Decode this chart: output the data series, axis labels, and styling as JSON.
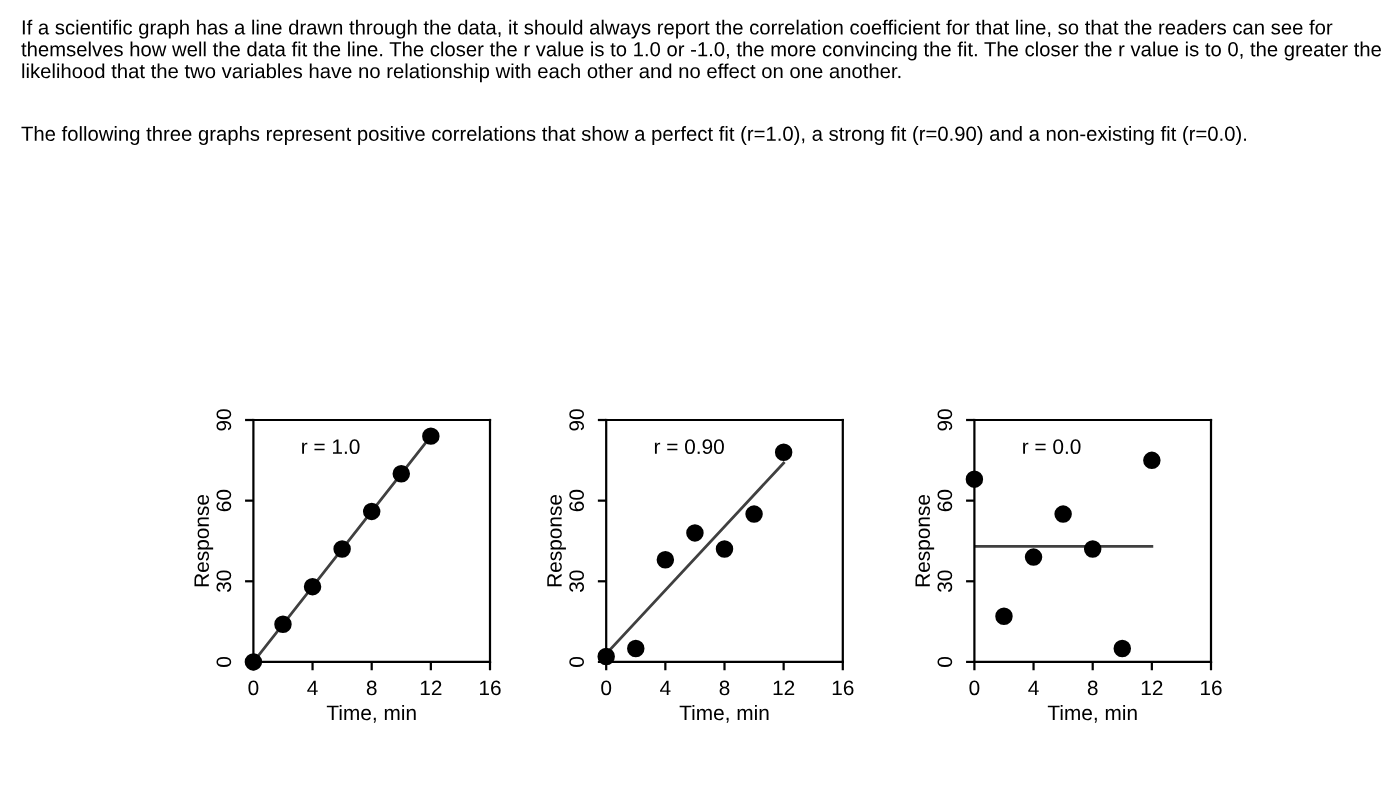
{
  "chart_data": [
    {
      "type": "scatter",
      "title": "r = 1.0",
      "xlabel": "Time, min",
      "ylabel": "Response",
      "xlim": [
        0,
        16
      ],
      "ylim": [
        0,
        90
      ],
      "xticks": [
        0,
        4,
        8,
        12,
        16
      ],
      "yticks": [
        0,
        30,
        60,
        90
      ],
      "grid": false,
      "legend": false,
      "annotations": [
        "If a scientific graph has a line drawn through the data, it should always report the correlation coefficient for that line, so that the readers can see for themselves how well the data fit the line. The closer the r value is to 1.0 or -1.0, the more convincing the fit. The closer the r value is to 0, the greater the likelihood that the two variables have no relationship with each other and no effect on one another.",
        "The following three graphs represent positive correlations that show a perfect fit (r=1.0), a strong fit (r=0.90) and a non-existing fit (r=0.0)."
      ],
      "series": [
        {
          "type": "scatter",
          "marker": "circle",
          "color": "#000000",
          "x": [
            0,
            2,
            4,
            6,
            8,
            10,
            12
          ],
          "values": [
            0,
            14,
            28,
            42,
            56,
            70,
            84
          ]
        },
        {
          "type": "line",
          "line_style": "solid",
          "color": "#404040",
          "x": [
            0,
            12
          ],
          "values": [
            0,
            84
          ]
        }
      ]
    },
    {
      "type": "scatter",
      "title": "r = 0.90",
      "xlabel": "Time, min",
      "ylabel": "Response",
      "xlim": [
        0,
        16
      ],
      "ylim": [
        0,
        90
      ],
      "xticks": [
        0,
        4,
        8,
        12,
        16
      ],
      "yticks": [
        0,
        30,
        60,
        90
      ],
      "grid": false,
      "legend": false,
      "series": [
        {
          "type": "scatter",
          "marker": "circle",
          "color": "#000000",
          "x": [
            0,
            2,
            4,
            6,
            8,
            10,
            12
          ],
          "values": [
            2,
            5,
            38,
            48,
            42,
            55,
            78
          ]
        },
        {
          "type": "line",
          "line_style": "solid",
          "color": "#404040",
          "x": [
            0,
            12
          ],
          "values": [
            3,
            74
          ]
        }
      ]
    },
    {
      "type": "scatter",
      "title": "r = 0.0",
      "xlabel": "Time, min",
      "ylabel": "Response",
      "xlim": [
        0,
        16
      ],
      "ylim": [
        0,
        90
      ],
      "xticks": [
        0,
        4,
        8,
        12,
        16
      ],
      "yticks": [
        0,
        30,
        60,
        90
      ],
      "grid": false,
      "legend": false,
      "series": [
        {
          "type": "scatter",
          "marker": "circle",
          "color": "#000000",
          "x": [
            0,
            2,
            4,
            6,
            8,
            10,
            12
          ],
          "values": [
            68,
            17,
            39,
            55,
            42,
            5,
            75
          ]
        },
        {
          "type": "line",
          "line_style": "solid",
          "color": "#404040",
          "x": [
            0,
            12
          ],
          "values": [
            43,
            43
          ]
        }
      ]
    }
  ]
}
